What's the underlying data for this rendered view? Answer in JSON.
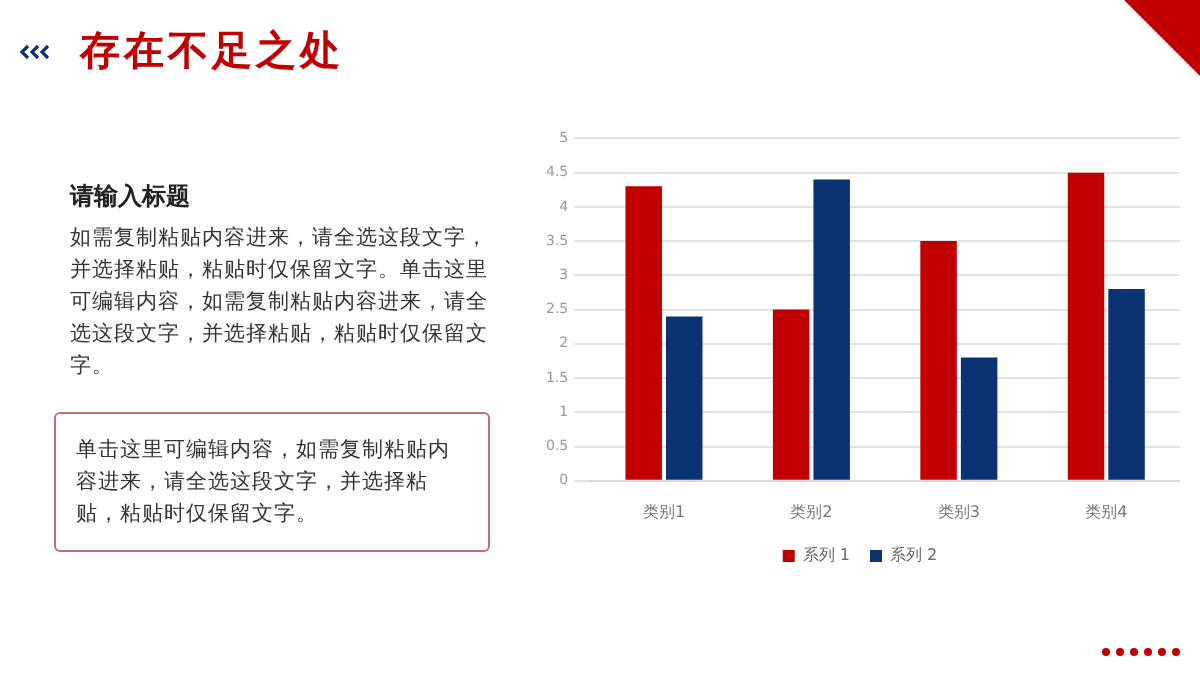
{
  "chart_data": {
    "type": "bar",
    "title": "存在不足之处",
    "annotations": [
      "请输入标题",
      "如需复制粘贴内容进来，请全选这段文字，并选择粘贴，粘贴时仅保留文字。单击这里可编辑内容，如需复制粘贴内容进来，请全选这段文字，并选择粘贴，粘贴时仅保留文字。",
      "单击这里可编辑内容，如需复制粘贴内容进来，请全选这段文字，并选择粘贴，粘贴时仅保留文字。"
    ],
    "categories": [
      "类别1",
      "类别2",
      "类别3",
      "类别4"
    ],
    "series": [
      {
        "name": "系列 1",
        "color": "#c00000",
        "values": [
          4.3,
          2.5,
          3.5,
          4.5
        ]
      },
      {
        "name": "系列 2",
        "color": "#0b3372",
        "values": [
          2.4,
          4.4,
          1.8,
          2.8
        ]
      }
    ],
    "ylim": [
      0,
      5
    ],
    "yticks": [
      0,
      0.5,
      1,
      1.5,
      2,
      2.5,
      3,
      3.5,
      4,
      4.5,
      5
    ],
    "grid": "y",
    "legend": "bottom"
  }
}
